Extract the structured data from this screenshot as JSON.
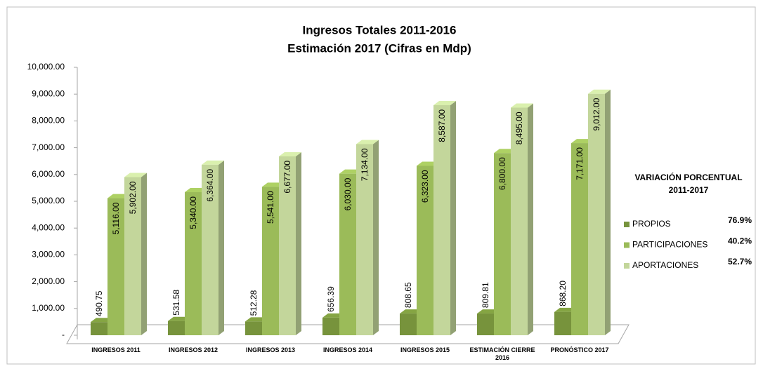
{
  "chart_data": {
    "type": "bar3d",
    "title": "Ingresos Totales 2011-2016",
    "subtitle": "Estimación 2017 (Cifras en Mdp)",
    "categories": [
      "INGRESOS 2011",
      "INGRESOS 2012",
      "INGRESOS 2013",
      "INGRESOS 2014",
      "INGRESOS 2015",
      "ESTIMACIÓN CIERRE 2016",
      "PRONÓSTICO 2017"
    ],
    "series": [
      {
        "name": "PROPIOS",
        "color": "#77933c",
        "values": [
          490.75,
          531.58,
          512.28,
          656.39,
          808.65,
          809.81,
          868.2
        ],
        "value_labels": [
          "490.75",
          "531.58",
          "512.28",
          "656.39",
          "808.65",
          "809.81",
          "868.20"
        ]
      },
      {
        "name": "PARTICIPACIONES",
        "color": "#9bbb59",
        "values": [
          5116,
          5340,
          5541,
          6030,
          6323,
          6800,
          7171
        ],
        "value_labels": [
          "5,116.00",
          "5,340.00",
          "5,541.00",
          "6,030.00",
          "6,323.00",
          "6,800.00",
          "7,171.00"
        ]
      },
      {
        "name": "APORTACIONES",
        "color": "#c3d69b",
        "values": [
          5902,
          6364,
          6677,
          7134,
          8587,
          8495,
          9012
        ],
        "value_labels": [
          "5,902.00",
          "6,364.00",
          "6,677.00",
          "7,134.00",
          "8,587.00",
          "8,495.00",
          "9,012.00"
        ]
      }
    ],
    "ylim": [
      0,
      10000
    ],
    "yticks": [
      {
        "value": 0,
        "label": "-"
      },
      {
        "value": 1000,
        "label": "1,000.00"
      },
      {
        "value": 2000,
        "label": "2,000.00"
      },
      {
        "value": 3000,
        "label": "3,000.00"
      },
      {
        "value": 4000,
        "label": "4,000.00"
      },
      {
        "value": 5000,
        "label": "5,000.00"
      },
      {
        "value": 6000,
        "label": "6,000.00"
      },
      {
        "value": 7000,
        "label": "7,000.00"
      },
      {
        "value": 8000,
        "label": "8,000.00"
      },
      {
        "value": 9000,
        "label": "9,000.00"
      },
      {
        "value": 10000,
        "label": "10,000.00"
      }
    ],
    "grid": false,
    "legend": "right",
    "annotation_title": [
      "VARIACIÓN PORCENTUAL",
      "2011-2017"
    ],
    "annotations": [
      "76.9%",
      "40.2%",
      "52.7%"
    ]
  }
}
